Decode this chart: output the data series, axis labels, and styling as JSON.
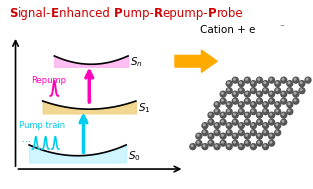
{
  "bg_color": "#ffffff",
  "pump_color": "#00ccee",
  "repump_color": "#ff00bb",
  "S1_fill": "#f0d080",
  "Sn_fill": "#ffaaee",
  "pump_fill": "#aaeeff",
  "arrow_fill": "#ffaa00",
  "bond_color": "#bbbbbb",
  "atom_color": "#555555",
  "atom_highlight": "#aaaaaa",
  "label_S0": "S$_0$",
  "label_S1": "S$_1$",
  "label_Sn": "S$_n$",
  "cation_text": "Cation + e",
  "pump_train_label": "Pump train",
  "repump_label": "Repump",
  "figw": 3.13,
  "figh": 1.89,
  "dpi": 100
}
